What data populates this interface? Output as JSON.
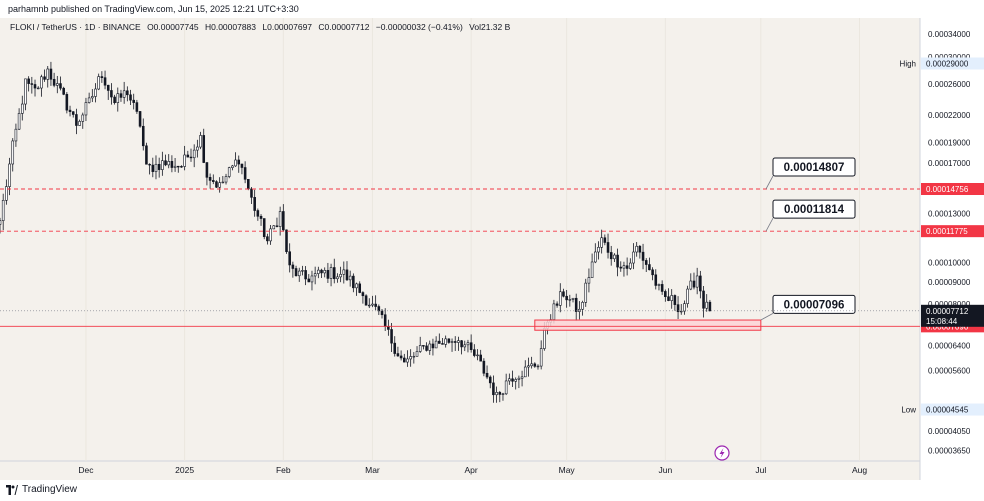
{
  "publisher": "parhamnb published on TradingView.com, Jun 15, 2025 12:21 UTC+3:30",
  "legend": {
    "symbol": "FLOKI / TetherUS · 1D · BINANCE",
    "open": "O0.00007745",
    "high": "H0.00007883",
    "low": "L0.00007697",
    "close": "C0.00007712",
    "change": "−0.00000032 (−0.41%)",
    "volume": "Vol21.32 B"
  },
  "footer": {
    "brand": "TradingView"
  },
  "colors": {
    "background": "#f4f1ec",
    "up": "#ffffff",
    "down": "#131722",
    "level_red": "#f23645",
    "zone_fill": "#fbd3d6",
    "price_tag": "#131722"
  },
  "chart_data": {
    "type": "candlestick",
    "scale": "log",
    "y_ticks": [
      "0.00034000",
      "0.00030000",
      "0.00026000",
      "0.00022000",
      "0.00019000",
      "0.00017000",
      "0.00013000",
      "0.00010000",
      "0.00009000",
      "0.00008000",
      "0.00006400",
      "0.00005600",
      "0.00004050",
      "0.00003650"
    ],
    "y_tick_values": [
      0.00034,
      0.0003,
      0.00026,
      0.00022,
      0.00019,
      0.00017,
      0.00013,
      0.0001,
      9e-05,
      8e-05,
      6.4e-05,
      5.6e-05,
      4.05e-05,
      3.65e-05
    ],
    "ylim": [
      3.45e-05,
      0.00037
    ],
    "x_ticks": [
      {
        "label": "Dec",
        "date": "2024-12-01"
      },
      {
        "label": "2025",
        "date": "2025-01-01"
      },
      {
        "label": "Feb",
        "date": "2025-02-01"
      },
      {
        "label": "Mar",
        "date": "2025-03-01"
      },
      {
        "label": "Apr",
        "date": "2025-04-01"
      },
      {
        "label": "May",
        "date": "2025-05-01"
      },
      {
        "label": "Jun",
        "date": "2025-06-01"
      },
      {
        "label": "Jul",
        "date": "2025-07-01"
      },
      {
        "label": "Aug",
        "date": "2025-08-01"
      }
    ],
    "xlim": [
      "2024-11-04",
      "2025-08-20"
    ],
    "anchors": [
      {
        "date": "2024-11-04",
        "price": 0.000125
      },
      {
        "date": "2024-11-08",
        "price": 0.000185
      },
      {
        "date": "2024-11-12",
        "price": 0.00026
      },
      {
        "date": "2024-11-15",
        "price": 0.00025
      },
      {
        "date": "2024-11-19",
        "price": 0.00028
      },
      {
        "date": "2024-11-24",
        "price": 0.00024
      },
      {
        "date": "2024-11-28",
        "price": 0.00021
      },
      {
        "date": "2024-12-02",
        "price": 0.000235
      },
      {
        "date": "2024-12-06",
        "price": 0.000275
      },
      {
        "date": "2024-12-10",
        "price": 0.000235
      },
      {
        "date": "2024-12-14",
        "price": 0.00025
      },
      {
        "date": "2024-12-18",
        "price": 0.00021
      },
      {
        "date": "2024-12-20",
        "price": 0.000165
      },
      {
        "date": "2024-12-25",
        "price": 0.00017
      },
      {
        "date": "2024-12-31",
        "price": 0.000168
      },
      {
        "date": "2025-01-06",
        "price": 0.000195
      },
      {
        "date": "2025-01-08",
        "price": 0.00016
      },
      {
        "date": "2025-01-12",
        "price": 0.00015
      },
      {
        "date": "2025-01-18",
        "price": 0.000175
      },
      {
        "date": "2025-01-22",
        "price": 0.00014
      },
      {
        "date": "2025-01-27",
        "price": 0.000112
      },
      {
        "date": "2025-01-31",
        "price": 0.00013
      },
      {
        "date": "2025-02-03",
        "price": 9.65e-05
      },
      {
        "date": "2025-02-08",
        "price": 9.15e-05
      },
      {
        "date": "2025-02-14",
        "price": 9.45e-05
      },
      {
        "date": "2025-02-20",
        "price": 9.4e-05
      },
      {
        "date": "2025-02-26",
        "price": 8.4e-05
      },
      {
        "date": "2025-03-03",
        "price": 7.55e-05
      },
      {
        "date": "2025-03-08",
        "price": 6.35e-05
      },
      {
        "date": "2025-03-11",
        "price": 5.8e-05
      },
      {
        "date": "2025-03-18",
        "price": 6.4e-05
      },
      {
        "date": "2025-03-24",
        "price": 6.55e-05
      },
      {
        "date": "2025-03-28",
        "price": 6.65e-05
      },
      {
        "date": "2025-04-03",
        "price": 5.95e-05
      },
      {
        "date": "2025-04-07",
        "price": 5.25e-05
      },
      {
        "date": "2025-04-09",
        "price": 4.85e-05
      },
      {
        "date": "2025-04-13",
        "price": 5.4e-05
      },
      {
        "date": "2025-04-18",
        "price": 5.6e-05
      },
      {
        "date": "2025-04-22",
        "price": 5.85e-05
      },
      {
        "date": "2025-04-25",
        "price": 7.35e-05
      },
      {
        "date": "2025-04-30",
        "price": 8.5e-05
      },
      {
        "date": "2025-05-05",
        "price": 7.65e-05
      },
      {
        "date": "2025-05-09",
        "price": 0.0001
      },
      {
        "date": "2025-05-12",
        "price": 0.0001125
      },
      {
        "date": "2025-05-16",
        "price": 0.000102
      },
      {
        "date": "2025-05-20",
        "price": 9.7e-05
      },
      {
        "date": "2025-05-23",
        "price": 0.000108
      },
      {
        "date": "2025-05-27",
        "price": 9.65e-05
      },
      {
        "date": "2025-05-31",
        "price": 8.3e-05
      },
      {
        "date": "2025-06-04",
        "price": 8.1e-05
      },
      {
        "date": "2025-06-06",
        "price": 7.75e-05
      },
      {
        "date": "2025-06-09",
        "price": 8.75e-05
      },
      {
        "date": "2025-06-11",
        "price": 9.35e-05
      },
      {
        "date": "2025-06-13",
        "price": 8e-05
      },
      {
        "date": "2025-06-15",
        "price": 7.712e-05
      }
    ],
    "levels": [
      {
        "price": 0.00014807,
        "axis_label": "0.00014756",
        "callout": "0.00014807",
        "style": "dashed"
      },
      {
        "price": 0.00011814,
        "axis_label": "0.00011775",
        "callout": "0.00011814",
        "style": "dashed"
      },
      {
        "price": 7.096e-05,
        "axis_label": "0.00007090",
        "callout": "0.00007096",
        "style": "solid"
      }
    ],
    "zone": {
      "start": "2025-04-21",
      "end": "2025-07-01",
      "top": 7.34e-05,
      "bottom": 6.95e-05
    },
    "last_price": {
      "price": 7.712e-05,
      "label": "0.00007712",
      "countdown": "15:08:44"
    },
    "high_label": {
      "text": "High",
      "value": "0.00029000",
      "price": 0.00029
    },
    "low_label": {
      "text": "Low",
      "value": "0.00004545",
      "price": 4.545e-05
    }
  }
}
